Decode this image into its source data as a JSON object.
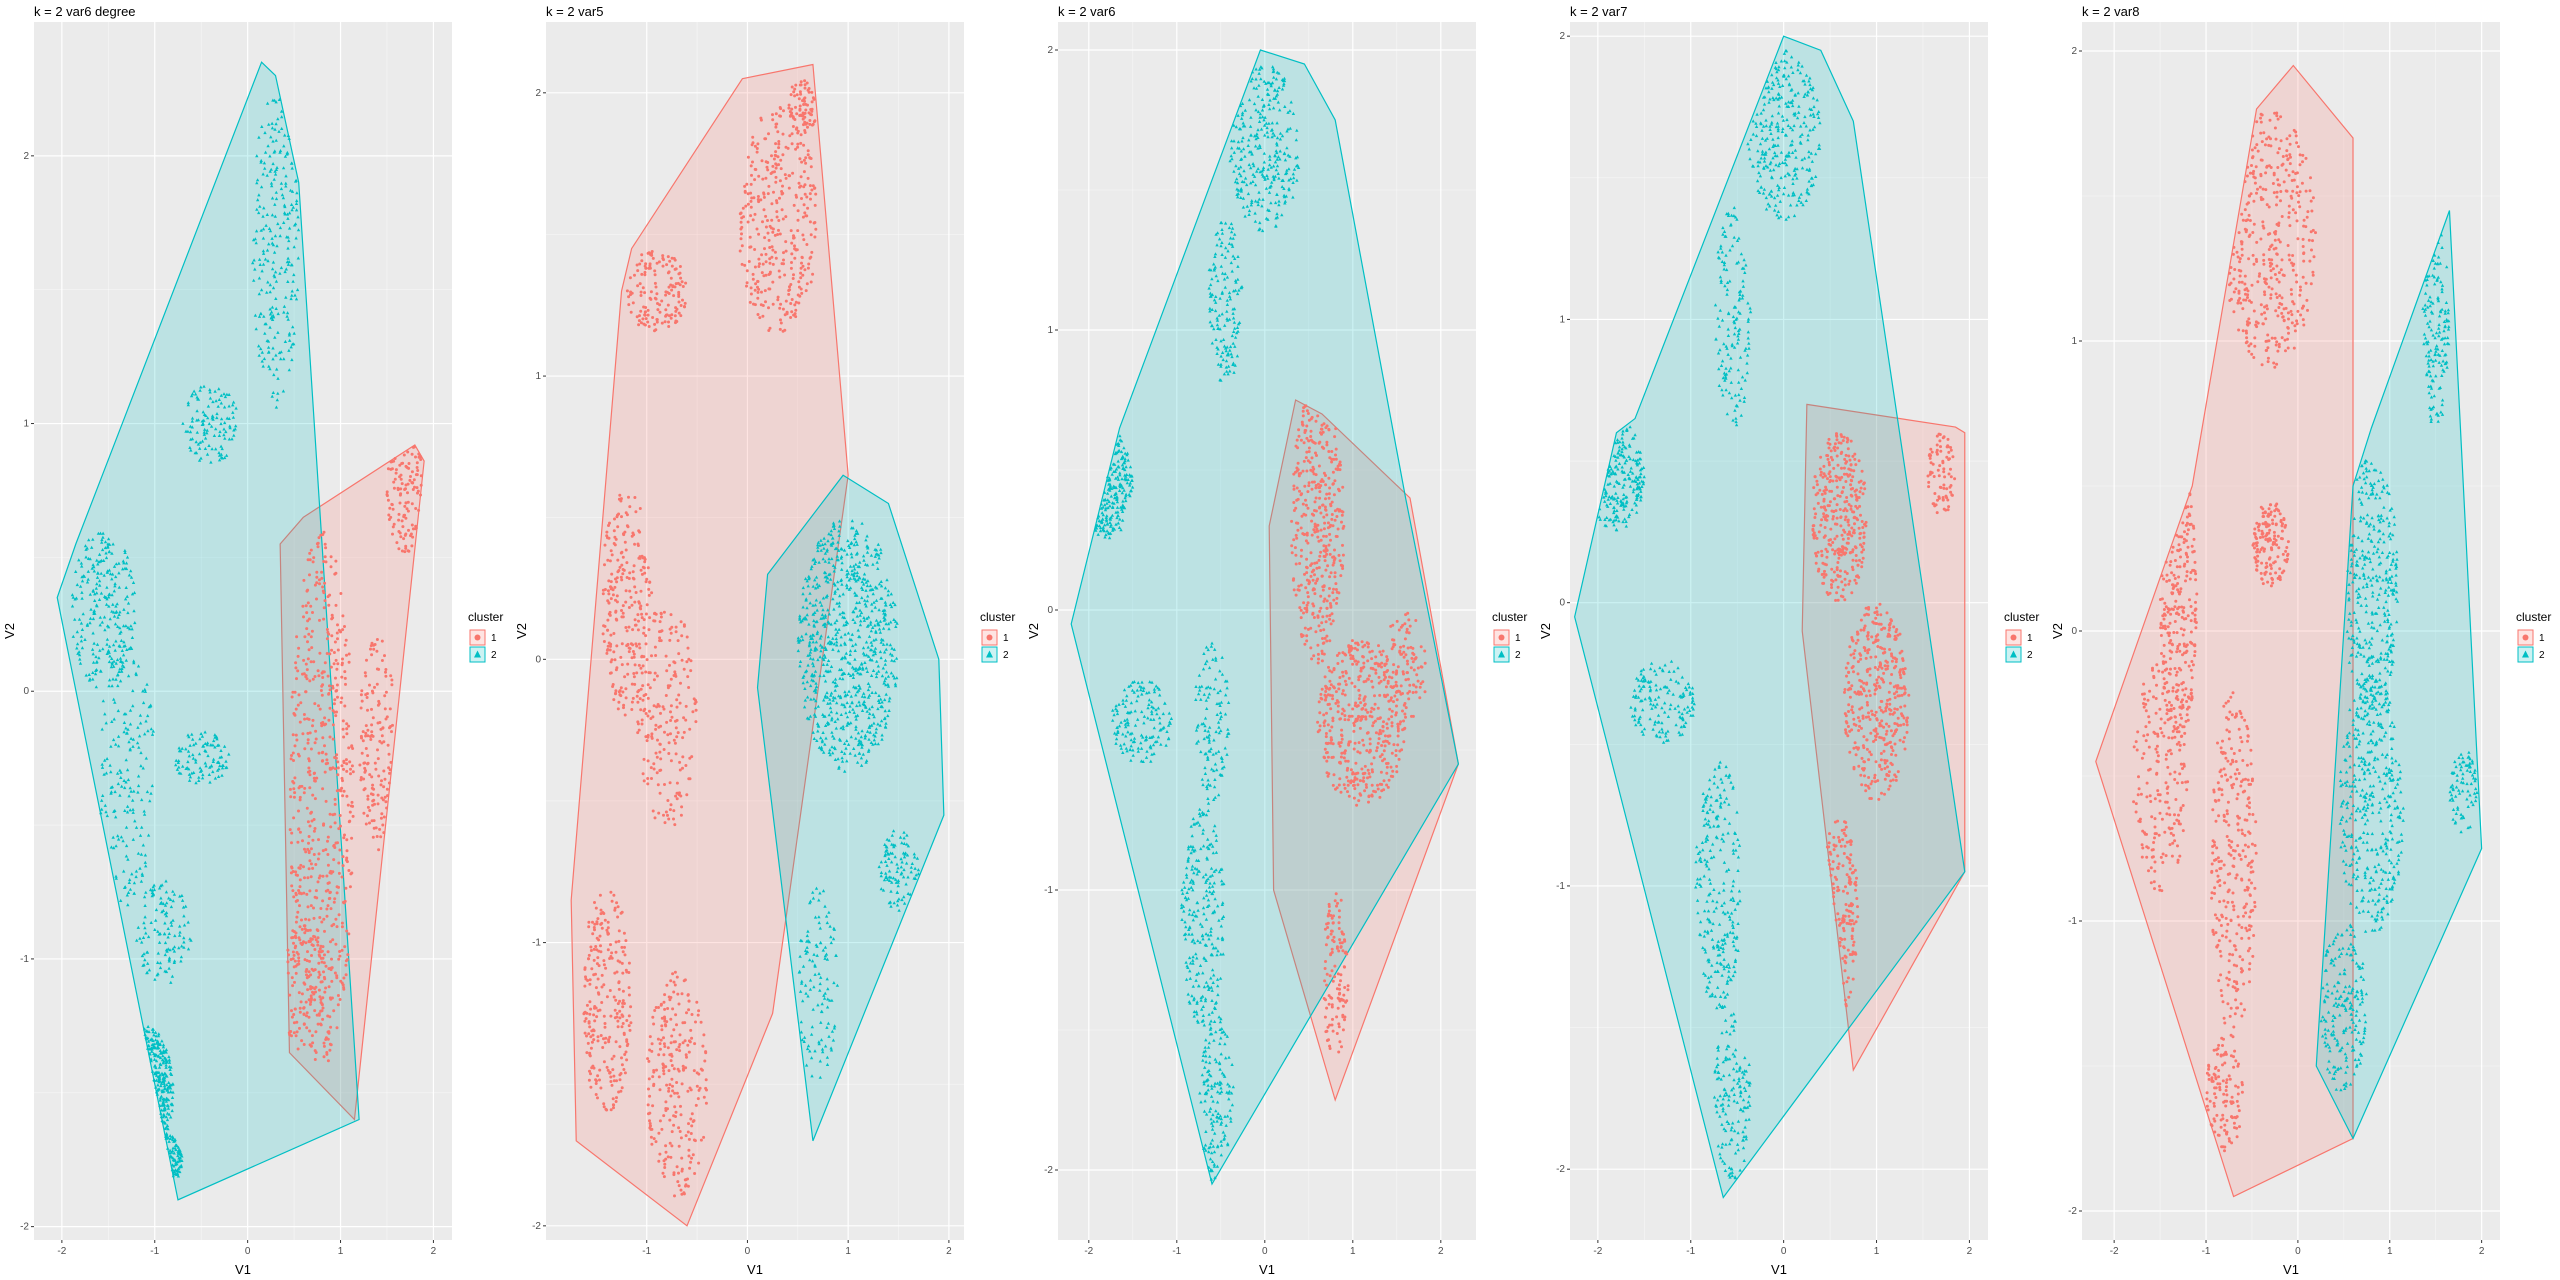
{
  "colors": {
    "cluster1": "#F8766D",
    "cluster2": "#00BFC4",
    "panel_bg": "#EBEBEB",
    "grid": "#FFFFFF"
  },
  "chart_data": [
    {
      "type": "scatter",
      "title": "k = 2 var6 degree",
      "xlabel": "V1",
      "ylabel": "V2",
      "xlim": [
        -2.3,
        2.2
      ],
      "ylim": [
        -2.05,
        2.5
      ],
      "xticks": [
        -2,
        -1,
        0,
        1,
        2
      ],
      "yticks": [
        -2,
        -1,
        0,
        1,
        2
      ],
      "tick_labels_x": [
        "-2",
        "-1",
        "0",
        "1",
        "2"
      ],
      "tick_labels_y": [
        "-2",
        "-1",
        "0",
        "1",
        "2"
      ],
      "grid": true,
      "legend": {
        "title": "cluster",
        "entries": [
          "1",
          "2"
        ],
        "placement": "right"
      },
      "series": [
        {
          "name": "1",
          "hull": [
            [
              0.6,
              0.65
            ],
            [
              1.8,
              0.92
            ],
            [
              1.9,
              0.86
            ],
            [
              1.15,
              -1.6
            ],
            [
              0.45,
              -1.35
            ],
            [
              0.35,
              0.55
            ]
          ],
          "blobs": [
            [
              1.7,
              0.75,
              0.2,
              0.25,
              120
            ],
            [
              0.8,
              -0.4,
              0.35,
              1.0,
              600
            ],
            [
              0.6,
              -1.1,
              0.25,
              0.25,
              120
            ],
            [
              1.4,
              -0.2,
              0.2,
              0.4,
              150
            ]
          ]
        },
        {
          "name": "2",
          "hull": [
            [
              0.15,
              2.35
            ],
            [
              0.3,
              2.3
            ],
            [
              0.55,
              1.9
            ],
            [
              1.2,
              -1.6
            ],
            [
              -0.75,
              -1.9
            ],
            [
              -2.05,
              0.35
            ],
            [
              -1.85,
              0.55
            ]
          ],
          "blobs": [
            [
              0.3,
              1.65,
              0.25,
              0.6,
              250
            ],
            [
              -0.4,
              1.0,
              0.3,
              0.15,
              120
            ],
            [
              -1.55,
              0.3,
              0.35,
              0.3,
              250
            ],
            [
              -0.5,
              -0.25,
              0.3,
              0.1,
              100
            ],
            [
              -1.3,
              -0.3,
              0.3,
              0.5,
              180
            ],
            [
              -0.9,
              -0.9,
              0.3,
              0.2,
              120
            ],
            [
              -1.1,
              -1.5,
              0.3,
              0.25,
              220
            ],
            [
              -0.9,
              -1.75,
              0.2,
              0.1,
              80
            ]
          ]
        }
      ]
    },
    {
      "type": "scatter",
      "title": "k = 2 var5",
      "xlabel": "V1",
      "ylabel": "V2",
      "xlim": [
        -2.0,
        2.15
      ],
      "ylim": [
        -2.05,
        2.25
      ],
      "xticks": [
        -1,
        0,
        1,
        2
      ],
      "yticks": [
        -2,
        -1,
        0,
        1,
        2
      ],
      "tick_labels_x": [
        "-1",
        "0",
        "1",
        "2"
      ],
      "tick_labels_y": [
        "-2",
        "-1",
        "0",
        "1",
        "2"
      ],
      "grid": true,
      "legend": {
        "title": "cluster",
        "entries": [
          "1",
          "2"
        ],
        "placement": "right"
      },
      "series": [
        {
          "name": "1",
          "hull": [
            [
              -0.05,
              2.05
            ],
            [
              0.65,
              2.1
            ],
            [
              1.0,
              0.65
            ],
            [
              0.25,
              -1.25
            ],
            [
              -0.6,
              -2.0
            ],
            [
              -1.7,
              -1.7
            ],
            [
              -1.75,
              -0.85
            ],
            [
              -1.25,
              1.3
            ],
            [
              -1.15,
              1.45
            ]
          ],
          "blobs": [
            [
              0.3,
              1.55,
              0.4,
              0.4,
              350
            ],
            [
              -0.9,
              1.3,
              0.3,
              0.15,
              150
            ],
            [
              -1.2,
              0.2,
              0.25,
              0.4,
              250
            ],
            [
              -0.8,
              -0.2,
              0.3,
              0.4,
              200
            ],
            [
              -1.4,
              -1.2,
              0.25,
              0.4,
              250
            ],
            [
              -0.7,
              -1.5,
              0.3,
              0.4,
              250
            ],
            [
              0.55,
              1.95,
              0.15,
              0.1,
              80
            ]
          ]
        },
        {
          "name": "2",
          "hull": [
            [
              0.95,
              0.65
            ],
            [
              1.4,
              0.55
            ],
            [
              1.9,
              0.0
            ],
            [
              1.95,
              -0.55
            ],
            [
              0.65,
              -1.7
            ],
            [
              0.1,
              -0.1
            ],
            [
              0.2,
              0.3
            ]
          ],
          "blobs": [
            [
              1.0,
              0.05,
              0.5,
              0.45,
              800
            ],
            [
              1.5,
              -0.75,
              0.2,
              0.15,
              100
            ],
            [
              0.7,
              -1.15,
              0.2,
              0.35,
              120
            ]
          ]
        }
      ]
    },
    {
      "type": "scatter",
      "title": "k = 2 var6",
      "xlabel": "V1",
      "ylabel": "V2",
      "xlim": [
        -2.35,
        2.4
      ],
      "ylim": [
        -2.25,
        2.1
      ],
      "xticks": [
        -2,
        -1,
        0,
        1,
        2
      ],
      "yticks": [
        -2,
        -1,
        0,
        1,
        2
      ],
      "tick_labels_x": [
        "-2",
        "-1",
        "0",
        "1",
        "2"
      ],
      "tick_labels_y": [
        "-2",
        "-1",
        "0",
        "1",
        "2"
      ],
      "grid": true,
      "legend": {
        "title": "cluster",
        "entries": [
          "1",
          "2"
        ],
        "placement": "right"
      },
      "series": [
        {
          "name": "1",
          "hull": [
            [
              0.35,
              0.75
            ],
            [
              0.65,
              0.7
            ],
            [
              1.65,
              0.4
            ],
            [
              2.2,
              -0.55
            ],
            [
              0.8,
              -1.75
            ],
            [
              0.1,
              -1.0
            ],
            [
              0.05,
              0.3
            ]
          ],
          "blobs": [
            [
              0.6,
              0.3,
              0.3,
              0.5,
              400
            ],
            [
              1.1,
              -0.4,
              0.5,
              0.3,
              450
            ],
            [
              0.8,
              -1.3,
              0.15,
              0.3,
              120
            ],
            [
              1.6,
              -0.2,
              0.25,
              0.2,
              100
            ]
          ]
        },
        {
          "name": "2",
          "hull": [
            [
              -0.05,
              2.0
            ],
            [
              0.45,
              1.95
            ],
            [
              0.8,
              1.75
            ],
            [
              1.6,
              0.4
            ],
            [
              2.2,
              -0.55
            ],
            [
              -0.6,
              -2.05
            ],
            [
              -2.2,
              -0.05
            ],
            [
              -1.65,
              0.65
            ]
          ],
          "blobs": [
            [
              0.0,
              1.65,
              0.4,
              0.3,
              300
            ],
            [
              -0.45,
              1.1,
              0.2,
              0.3,
              150
            ],
            [
              -1.8,
              0.45,
              0.3,
              0.2,
              200
            ],
            [
              -1.4,
              -0.4,
              0.35,
              0.15,
              150
            ],
            [
              -0.6,
              -0.4,
              0.2,
              0.3,
              120
            ],
            [
              -0.7,
              -1.1,
              0.25,
              0.4,
              250
            ],
            [
              -0.55,
              -1.75,
              0.2,
              0.3,
              150
            ]
          ]
        }
      ]
    },
    {
      "type": "scatter",
      "title": "k = 2 var7",
      "xlabel": "V1",
      "ylabel": "V2",
      "xlim": [
        -2.3,
        2.2
      ],
      "ylim": [
        -2.25,
        2.05
      ],
      "xticks": [
        -2,
        -1,
        0,
        1,
        2
      ],
      "yticks": [
        -2,
        -1,
        0,
        1,
        2
      ],
      "tick_labels_x": [
        "-2",
        "-1",
        "0",
        "1",
        "2"
      ],
      "tick_labels_y": [
        "-2",
        "-1",
        "0",
        "1",
        "2"
      ],
      "grid": true,
      "legend": {
        "title": "cluster",
        "entries": [
          "1",
          "2"
        ],
        "placement": "right"
      },
      "series": [
        {
          "name": "1",
          "hull": [
            [
              0.25,
              0.7
            ],
            [
              1.85,
              0.62
            ],
            [
              1.95,
              0.6
            ],
            [
              1.95,
              -0.95
            ],
            [
              0.75,
              -1.65
            ],
            [
              0.2,
              -0.1
            ]
          ],
          "blobs": [
            [
              0.6,
              0.3,
              0.3,
              0.3,
              350
            ],
            [
              1.0,
              -0.35,
              0.35,
              0.35,
              400
            ],
            [
              1.7,
              0.45,
              0.15,
              0.15,
              80
            ],
            [
              0.6,
              -1.1,
              0.2,
              0.35,
              150
            ]
          ]
        },
        {
          "name": "2",
          "hull": [
            [
              0.0,
              2.0
            ],
            [
              0.4,
              1.95
            ],
            [
              0.75,
              1.7
            ],
            [
              1.95,
              -0.95
            ],
            [
              -0.65,
              -2.1
            ],
            [
              -2.25,
              -0.05
            ],
            [
              -1.8,
              0.6
            ],
            [
              -1.6,
              0.65
            ]
          ],
          "blobs": [
            [
              0.0,
              1.65,
              0.4,
              0.3,
              300
            ],
            [
              -0.55,
              1.0,
              0.2,
              0.4,
              150
            ],
            [
              -1.8,
              0.45,
              0.3,
              0.2,
              200
            ],
            [
              -1.3,
              -0.35,
              0.35,
              0.15,
              150
            ],
            [
              -0.7,
              -1.0,
              0.25,
              0.45,
              250
            ],
            [
              -0.55,
              -1.75,
              0.2,
              0.3,
              150
            ]
          ]
        }
      ]
    },
    {
      "type": "scatter",
      "title": "k = 2 var8",
      "xlabel": "V1",
      "ylabel": "V2",
      "xlim": [
        -2.35,
        2.2
      ],
      "ylim": [
        -2.1,
        2.1
      ],
      "xticks": [
        -2,
        -1,
        0,
        1,
        2
      ],
      "yticks": [
        -2,
        -1,
        0,
        1,
        2
      ],
      "tick_labels_x": [
        "-2",
        "-1",
        "0",
        "1",
        "2"
      ],
      "tick_labels_y": [
        "-2",
        "-1",
        "0",
        "1",
        "2"
      ],
      "grid": true,
      "legend": {
        "title": "cluster",
        "entries": [
          "1",
          "2"
        ],
        "placement": "right"
      },
      "series": [
        {
          "name": "1",
          "hull": [
            [
              -0.45,
              1.8
            ],
            [
              -0.05,
              1.95
            ],
            [
              0.6,
              1.7
            ],
            [
              0.6,
              -1.75
            ],
            [
              -0.7,
              -1.95
            ],
            [
              -1.7,
              -0.95
            ],
            [
              -2.2,
              -0.45
            ],
            [
              -1.15,
              0.5
            ]
          ],
          "blobs": [
            [
              -0.3,
              1.35,
              0.5,
              0.45,
              400
            ],
            [
              -0.3,
              0.3,
              0.2,
              0.15,
              150
            ],
            [
              -1.3,
              0.1,
              0.2,
              0.5,
              250
            ],
            [
              -1.5,
              -0.5,
              0.3,
              0.4,
              200
            ],
            [
              -0.7,
              -0.8,
              0.25,
              0.6,
              300
            ],
            [
              -0.8,
              -1.6,
              0.2,
              0.2,
              120
            ]
          ]
        },
        {
          "name": "2",
          "hull": [
            [
              1.65,
              1.45
            ],
            [
              2.0,
              -0.75
            ],
            [
              0.6,
              -1.75
            ],
            [
              0.2,
              -1.5
            ],
            [
              0.6,
              0.5
            ],
            [
              0.8,
              0.7
            ]
          ],
          "blobs": [
            [
              1.5,
              1.05,
              0.15,
              0.35,
              150
            ],
            [
              0.8,
              0.15,
              0.3,
              0.45,
              350
            ],
            [
              0.8,
              -0.6,
              0.35,
              0.45,
              400
            ],
            [
              0.5,
              -1.3,
              0.25,
              0.3,
              200
            ],
            [
              1.8,
              -0.55,
              0.15,
              0.15,
              80
            ]
          ]
        }
      ]
    }
  ]
}
